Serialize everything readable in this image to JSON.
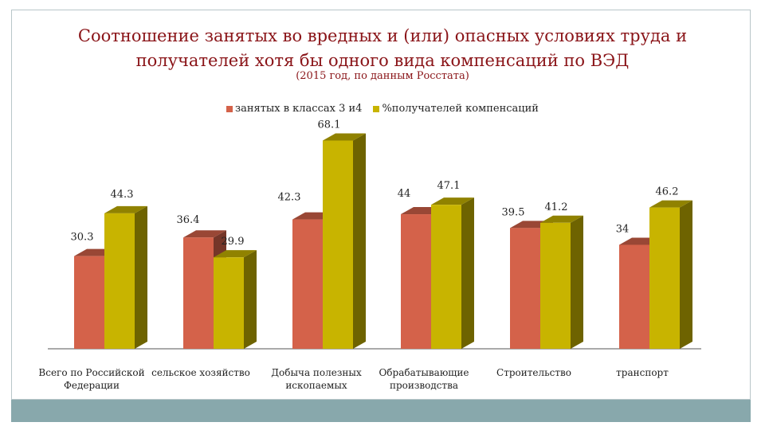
{
  "chart_data": {
    "type": "bar",
    "title_lines": [
      "Соотношение занятых во вредных и (или) опасных условиях труда и",
      "получателей хотя бы одного вида компенсаций по ВЭД"
    ],
    "subtitle": "(2015 год, по данным Росстата)",
    "categories": [
      [
        "Всего по Российской",
        "Федерации"
      ],
      [
        "сельское хозяйство"
      ],
      [
        "Добыча полезных",
        "ископаемых"
      ],
      [
        "Обрабатывающие",
        "производства"
      ],
      [
        "Строительство"
      ],
      [
        "транспорт"
      ]
    ],
    "series": [
      {
        "name": "занятых в классах 3 и4",
        "color": "#d4624a",
        "values": [
          30.3,
          36.4,
          42.3,
          44,
          39.5,
          34
        ]
      },
      {
        "name": "%получателей компенсаций",
        "color": "#c8b400",
        "values": [
          44.3,
          29.9,
          68.1,
          47.1,
          41.2,
          46.2
        ]
      }
    ],
    "ylim": [
      0,
      75
    ],
    "legend_position": "top",
    "grid": false
  }
}
